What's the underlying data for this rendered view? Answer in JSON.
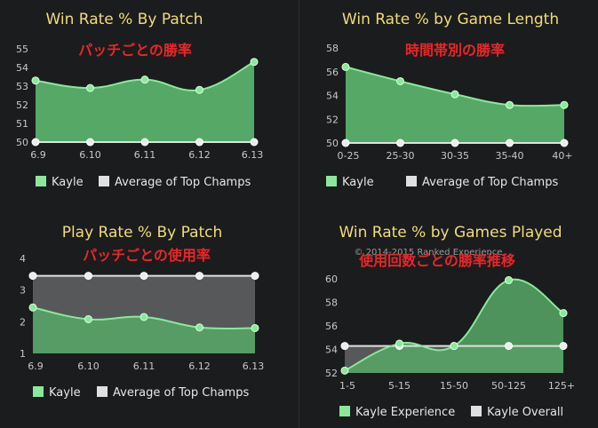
{
  "colors": {
    "series_line": "#8ae89a",
    "series_fill": "#56a866",
    "avg_line": "#e0e0e0",
    "avg_fill": "#5e5f61",
    "title": "#f0dc78",
    "annotation": "#e8262a"
  },
  "chart_data": [
    {
      "type": "area",
      "title": "Win Rate % By Patch",
      "annotation": "パッチごとの勝率",
      "categories": [
        "6.9",
        "6.10",
        "6.11",
        "6.12",
        "6.13"
      ],
      "ylim": [
        50,
        55
      ],
      "yticks": [
        "50",
        "51",
        "52",
        "53",
        "54",
        "55"
      ],
      "series": [
        {
          "name": "Kayle",
          "values": [
            53.3,
            52.9,
            53.35,
            52.8,
            54.3
          ]
        },
        {
          "name": "Average of Top Champs",
          "values": [
            50,
            50,
            50,
            50,
            50
          ]
        }
      ]
    },
    {
      "type": "area",
      "title": "Win Rate % by Game Length",
      "annotation": "時間帯別の勝率",
      "categories": [
        "0-25",
        "25-30",
        "30-35",
        "35-40",
        "40+"
      ],
      "ylim": [
        50,
        58
      ],
      "yticks": [
        "50",
        "52",
        "54",
        "56",
        "58"
      ],
      "series": [
        {
          "name": "Kayle",
          "values": [
            56.4,
            55.2,
            54.1,
            53.2,
            53.2
          ]
        },
        {
          "name": "Average of Top Champs",
          "values": [
            50,
            50,
            50,
            50,
            50
          ]
        }
      ]
    },
    {
      "type": "area",
      "title": "Play Rate % By Patch",
      "annotation": "パッチごとの使用率",
      "categories": [
        "6.9",
        "6.10",
        "6.11",
        "6.12",
        "6.13"
      ],
      "ylim": [
        1,
        4
      ],
      "yticks": [
        "1",
        "2",
        "3",
        "4"
      ],
      "series": [
        {
          "name": "Kayle",
          "values": [
            2.45,
            2.08,
            2.15,
            1.82,
            1.8
          ]
        },
        {
          "name": "Average of Top Champs",
          "values": [
            3.45,
            3.45,
            3.45,
            3.45,
            3.45
          ]
        }
      ]
    },
    {
      "type": "area",
      "title": "Win Rate % by Games Played",
      "annotation": "使用回数ごとの勝率推移",
      "watermark": "© 2014-2015 Ranked Experience",
      "categories": [
        "1-5",
        "5-15",
        "15-50",
        "50-125",
        "125+"
      ],
      "ylim": [
        52,
        61
      ],
      "yticks": [
        "52",
        "54",
        "56",
        "58",
        "60"
      ],
      "series": [
        {
          "name": "Kayle Experience",
          "values": [
            52.2,
            54.5,
            54.3,
            59.9,
            57.1
          ]
        },
        {
          "name": "Kayle Overall",
          "values": [
            54.3,
            54.3,
            54.3,
            54.3,
            54.3
          ]
        }
      ]
    }
  ]
}
